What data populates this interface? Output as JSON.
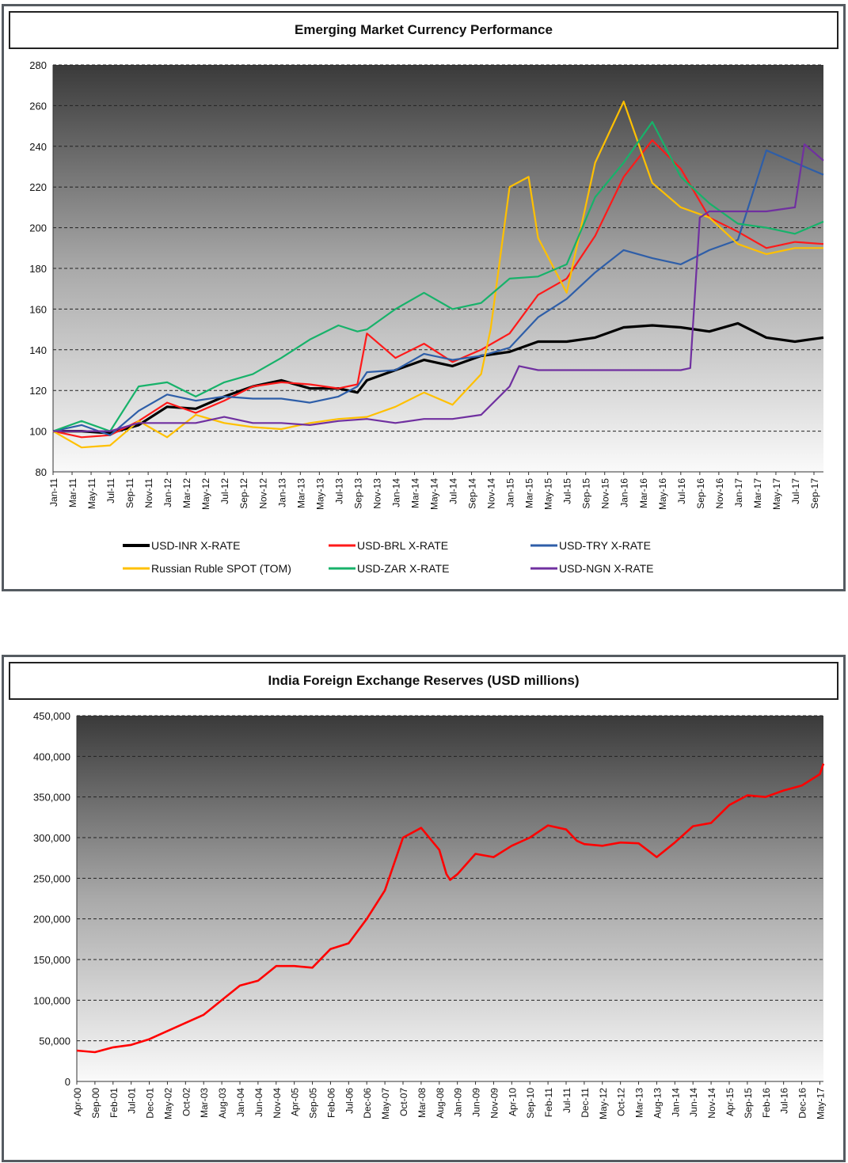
{
  "chart_data": [
    {
      "type": "line",
      "title": "Emerging Market Currency Performance",
      "ylim": [
        80,
        280
      ],
      "y_ticks": [
        "80",
        "100",
        "120",
        "140",
        "160",
        "180",
        "200",
        "220",
        "240",
        "260",
        "280"
      ],
      "x_ticks": [
        "Jan-11",
        "Mar-11",
        "May-11",
        "Jul-11",
        "Sep-11",
        "Nov-11",
        "Jan-12",
        "Mar-12",
        "May-12",
        "Jul-12",
        "Sep-12",
        "Nov-12",
        "Jan-13",
        "Mar-13",
        "May-13",
        "Jul-13",
        "Sep-13",
        "Nov-13",
        "Jan-14",
        "Mar-14",
        "May-14",
        "Jul-14",
        "Sep-14",
        "Nov-14",
        "Jan-15",
        "Mar-15",
        "May-15",
        "Jul-15",
        "Sep-15",
        "Nov-15",
        "Jan-16",
        "Mar-16",
        "May-16",
        "Jul-16",
        "Sep-16",
        "Nov-16",
        "Jan-17",
        "Mar-17",
        "May-17",
        "Jul-17",
        "Sep-17"
      ],
      "grid": true,
      "legend_position": "bottom",
      "series": [
        {
          "name": "USD-INR X-RATE",
          "color": "#000000",
          "x": [
            0,
            3,
            6,
            9,
            12,
            15,
            18,
            21,
            24,
            27,
            30,
            32,
            33,
            36,
            39,
            42,
            45,
            48,
            51,
            54,
            57,
            60,
            63,
            66,
            69,
            72,
            75,
            78,
            81
          ],
          "values": [
            100,
            100,
            99,
            103,
            112,
            111,
            117,
            122,
            125,
            121,
            121,
            119,
            125,
            130,
            135,
            132,
            137,
            139,
            144,
            144,
            146,
            151,
            152,
            151,
            149,
            153,
            146,
            144,
            146
          ]
        },
        {
          "name": "USD-BRL X-RATE",
          "color": "#ff1a1a",
          "x": [
            0,
            3,
            6,
            9,
            12,
            15,
            18,
            21,
            24,
            27,
            30,
            32,
            33,
            36,
            39,
            42,
            45,
            48,
            51,
            54,
            57,
            60,
            63,
            66,
            69,
            72,
            75,
            78,
            81
          ],
          "values": [
            100,
            97,
            98,
            105,
            114,
            109,
            115,
            122,
            124,
            123,
            121,
            123,
            148,
            136,
            143,
            134,
            140,
            148,
            167,
            175,
            196,
            225,
            243,
            229,
            205,
            198,
            190,
            193,
            192
          ]
        },
        {
          "name": "USD-TRY X-RATE",
          "color": "#2e5ea8",
          "x": [
            0,
            3,
            6,
            9,
            12,
            15,
            18,
            21,
            24,
            27,
            30,
            32,
            33,
            36,
            39,
            42,
            45,
            48,
            51,
            54,
            57,
            60,
            63,
            66,
            69,
            72,
            75,
            78,
            81
          ],
          "values": [
            100,
            103,
            98,
            110,
            118,
            115,
            117,
            116,
            116,
            114,
            117,
            122,
            129,
            130,
            138,
            135,
            137,
            141,
            156,
            165,
            178,
            189,
            185,
            182,
            189,
            194,
            238,
            232,
            226
          ]
        },
        {
          "name": "Russian Ruble SPOT (TOM)",
          "color": "#ffc000",
          "x": [
            0,
            3,
            6,
            9,
            12,
            15,
            18,
            21,
            24,
            27,
            30,
            33,
            36,
            39,
            42,
            45,
            46,
            48,
            50,
            51,
            54,
            57,
            60,
            63,
            66,
            69,
            72,
            75,
            78,
            81
          ],
          "values": [
            100,
            92,
            93,
            105,
            97,
            108,
            104,
            102,
            101,
            104,
            106,
            107,
            112,
            119,
            113,
            128,
            150,
            220,
            225,
            195,
            168,
            232,
            262,
            222,
            210,
            205,
            192,
            187,
            190,
            190
          ]
        },
        {
          "name": "USD-ZAR X-RATE",
          "color": "#17b26a",
          "x": [
            0,
            3,
            6,
            9,
            12,
            15,
            18,
            21,
            24,
            27,
            30,
            32,
            33,
            36,
            39,
            42,
            45,
            48,
            51,
            54,
            57,
            60,
            63,
            66,
            69,
            72,
            75,
            78,
            81
          ],
          "values": [
            100,
            105,
            100,
            122,
            124,
            117,
            124,
            128,
            136,
            145,
            152,
            149,
            150,
            160,
            168,
            160,
            163,
            175,
            176,
            182,
            215,
            232,
            252,
            225,
            212,
            202,
            200,
            197,
            203
          ]
        },
        {
          "name": "USD-NGN X-RATE",
          "color": "#7030a0",
          "x": [
            0,
            3,
            6,
            9,
            12,
            15,
            18,
            21,
            24,
            27,
            30,
            33,
            36,
            39,
            42,
            45,
            48,
            49,
            51,
            54,
            57,
            60,
            63,
            66,
            67,
            68,
            69,
            72,
            75,
            78,
            79,
            81
          ],
          "values": [
            100,
            100,
            100,
            104,
            104,
            104,
            107,
            104,
            104,
            103,
            105,
            106,
            104,
            106,
            106,
            108,
            122,
            132,
            130,
            130,
            130,
            130,
            130,
            130,
            131,
            205,
            208,
            208,
            208,
            210,
            241,
            233
          ]
        }
      ]
    },
    {
      "type": "line",
      "title": "India Foreign Exchange Reserves (USD millions)",
      "ylim": [
        0,
        450000
      ],
      "y_ticks": [
        "0",
        "50,000",
        "100,000",
        "150,000",
        "200,000",
        "250,000",
        "300,000",
        "350,000",
        "400,000",
        "450,000"
      ],
      "x_ticks": [
        "Apr-00",
        "Sep-00",
        "Feb-01",
        "Jul-01",
        "Dec-01",
        "May-02",
        "Oct-02",
        "Mar-03",
        "Aug-03",
        "Jan-04",
        "Jun-04",
        "Nov-04",
        "Apr-05",
        "Sep-05",
        "Feb-06",
        "Jul-06",
        "Dec-06",
        "May-07",
        "Oct-07",
        "Mar-08",
        "Aug-08",
        "Jan-09",
        "Jun-09",
        "Nov-09",
        "Apr-10",
        "Sep-10",
        "Feb-11",
        "Jul-11",
        "Dec-11",
        "May-12",
        "Oct-12",
        "Mar-13",
        "Aug-13",
        "Jan-14",
        "Jun-14",
        "Nov-14",
        "Apr-15",
        "Sep-15",
        "Feb-16",
        "Jul-16",
        "Dec-16",
        "May-17"
      ],
      "grid": true,
      "series": [
        {
          "name": "",
          "color": "#ff0000",
          "x": [
            0,
            5,
            10,
            15,
            20,
            25,
            30,
            35,
            40,
            45,
            50,
            55,
            60,
            65,
            70,
            75,
            80,
            85,
            90,
            95,
            100,
            102,
            103,
            105,
            110,
            115,
            120,
            125,
            130,
            135,
            138,
            140,
            145,
            150,
            155,
            160,
            165,
            170,
            175,
            180,
            185,
            190,
            195,
            200,
            205,
            206
          ],
          "values": [
            38000,
            36000,
            42000,
            45000,
            52000,
            62000,
            72000,
            82000,
            100000,
            118000,
            124000,
            142000,
            142000,
            140000,
            163000,
            170000,
            200000,
            235000,
            300000,
            312000,
            285000,
            255000,
            248000,
            255000,
            280000,
            276000,
            290000,
            300000,
            315000,
            310000,
            296000,
            292000,
            290000,
            294000,
            293000,
            276000,
            294000,
            314000,
            318000,
            340000,
            352000,
            350000,
            358000,
            364000,
            378000,
            391000
          ]
        }
      ]
    }
  ]
}
